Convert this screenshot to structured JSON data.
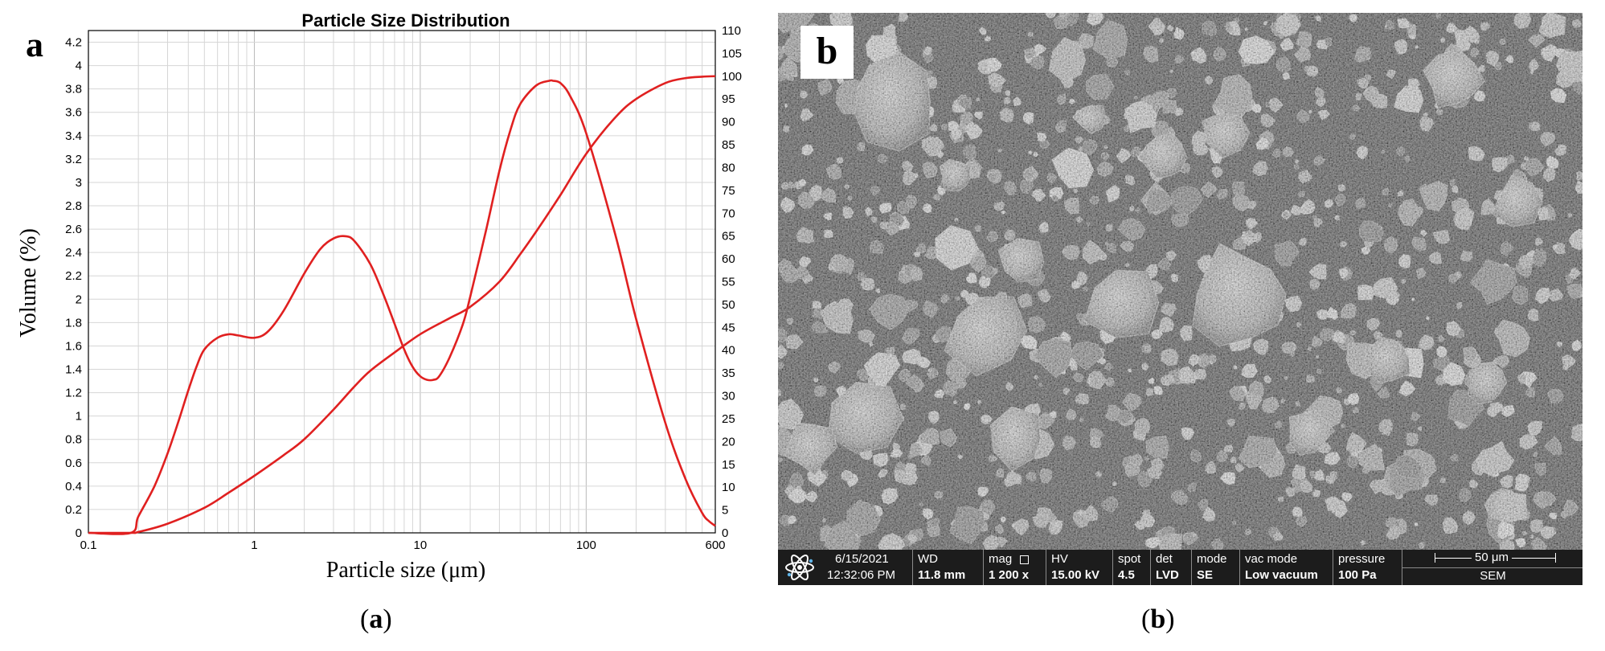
{
  "figure_a": {
    "panel_label": "a",
    "caption": "a",
    "chart_data": {
      "type": "line",
      "title": "Particle Size Distribution",
      "xlabel": "Particle size (μm)",
      "ylabel": "Volume (%)",
      "x_scale": "log",
      "xlim": [
        0.1,
        600
      ],
      "ylim": [
        0,
        4.3
      ],
      "y2lim": [
        0,
        110
      ],
      "x_ticks": [
        "0.1",
        "1",
        "10",
        "100",
        "600"
      ],
      "y_ticks": [
        "0",
        "0.2",
        "0.4",
        "0.6",
        "0.8",
        "1",
        "1.2",
        "1.4",
        "1.6",
        "1.8",
        "2",
        "2.2",
        "2.4",
        "2.6",
        "2.8",
        "3",
        "3.2",
        "3.4",
        "3.6",
        "3.8",
        "4",
        "4.2"
      ],
      "y2_ticks": [
        "0",
        "5",
        "10",
        "15",
        "20",
        "25",
        "30",
        "35",
        "40",
        "45",
        "50",
        "55",
        "60",
        "65",
        "70",
        "75",
        "80",
        "85",
        "90",
        "95",
        "100",
        "105",
        "110"
      ],
      "grid": true,
      "legend": "none",
      "line_color": "#e02020",
      "series": [
        {
          "axis": "left",
          "x": [
            0.1,
            0.18,
            0.2,
            0.25,
            0.3,
            0.35,
            0.4,
            0.45,
            0.5,
            0.6,
            0.7,
            0.8,
            1,
            1.2,
            1.5,
            2,
            2.5,
            3,
            3.5,
            4,
            5,
            6,
            7,
            8,
            9,
            10,
            11,
            12,
            13,
            15,
            18,
            20,
            25,
            30,
            35,
            40,
            50,
            60,
            63,
            70,
            80,
            100,
            150,
            200,
            300,
            400,
            500,
            550,
            600
          ],
          "y": [
            0,
            0,
            0.14,
            0.4,
            0.68,
            0.96,
            1.22,
            1.43,
            1.57,
            1.67,
            1.7,
            1.69,
            1.67,
            1.72,
            1.9,
            2.22,
            2.43,
            2.52,
            2.54,
            2.5,
            2.3,
            2.04,
            1.79,
            1.57,
            1.42,
            1.34,
            1.31,
            1.31,
            1.34,
            1.5,
            1.78,
            2.02,
            2.6,
            3.1,
            3.45,
            3.67,
            3.83,
            3.87,
            3.87,
            3.85,
            3.74,
            3.42,
            2.55,
            1.83,
            0.94,
            0.45,
            0.17,
            0.1,
            0.06
          ]
        },
        {
          "axis": "right",
          "x": [
            0.1,
            0.18,
            0.2,
            0.3,
            0.5,
            0.7,
            1,
            1.5,
            2,
            3,
            4,
            5,
            7,
            10,
            15,
            20,
            30,
            40,
            50,
            70,
            100,
            150,
            200,
            300,
            400,
            500,
            600
          ],
          "y": [
            0,
            0,
            0.2,
            2,
            5.5,
            8.8,
            12.5,
            17,
            20.5,
            27,
            32,
            35.5,
            39.5,
            43.5,
            47,
            49.5,
            55,
            61,
            66,
            74,
            83,
            91,
            95,
            98.5,
            99.6,
            99.9,
            100
          ]
        }
      ]
    }
  },
  "figure_b": {
    "panel_label": "b",
    "caption": "b",
    "info_bar": {
      "date": "6/15/2021",
      "time": "12:32:06 PM",
      "wd_label": "WD",
      "wd_value": "11.8 mm",
      "mag_label": "mag",
      "mag_value": "1 200 x",
      "hv_label": "HV",
      "hv_value": "15.00 kV",
      "spot_label": "spot",
      "spot_value": "4.5",
      "det_label": "det",
      "det_value": "LVD",
      "mode_label": "mode",
      "mode_value": "SE",
      "vac_label": "vac mode",
      "vac_value": "Low vacuum",
      "pressure_label": "pressure",
      "pressure_value": "100 Pa",
      "scale_label": "50 μm",
      "scale_mode": "SEM",
      "logo_icon": "atom-icon"
    }
  }
}
